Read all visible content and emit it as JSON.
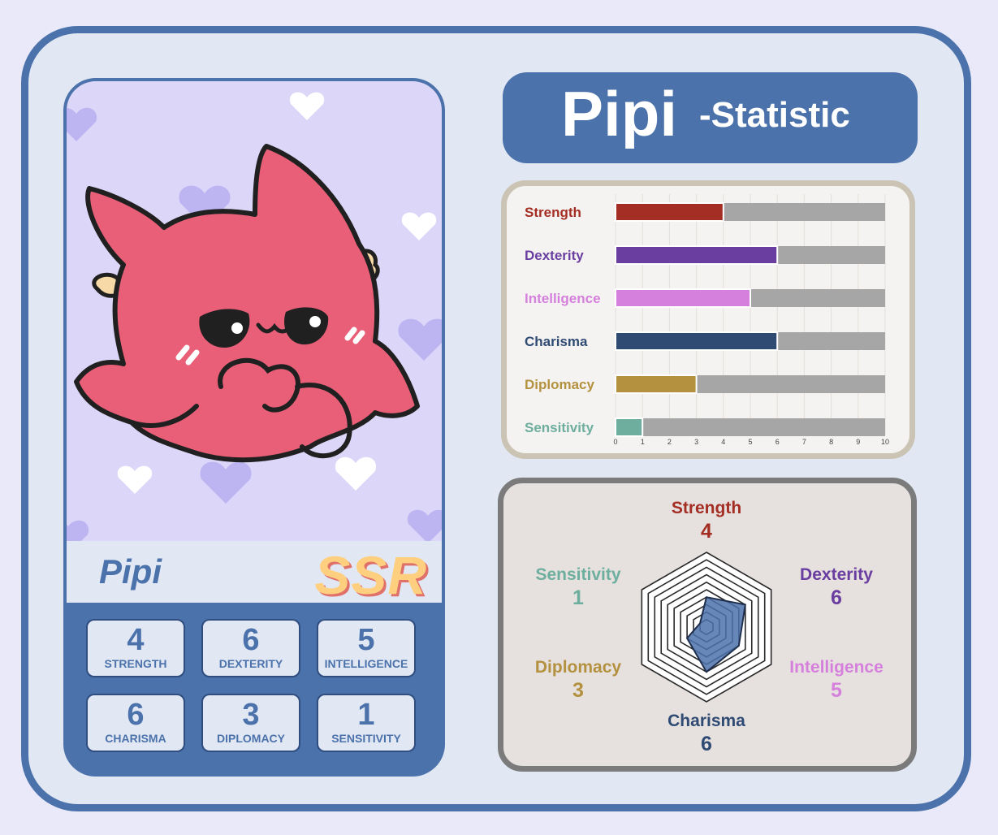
{
  "character": {
    "name": "Pipi",
    "rarity": "SSR"
  },
  "title": {
    "name": "Pipi",
    "suffix": "-Statistic"
  },
  "stats": [
    {
      "value": "4",
      "label": "STRENGTH"
    },
    {
      "value": "6",
      "label": "DEXTERITY"
    },
    {
      "value": "5",
      "label": "INTELLIGENCE"
    },
    {
      "value": "6",
      "label": "CHARISMA"
    },
    {
      "value": "3",
      "label": "DIPLOMACY"
    },
    {
      "value": "1",
      "label": "SENSITIVITY"
    }
  ],
  "chart_data": [
    {
      "type": "bar",
      "orientation": "horizontal",
      "categories": [
        "Strength",
        "Dexterity",
        "Intelligence",
        "Charisma",
        "Diplomacy",
        "Sensitivity"
      ],
      "values": [
        4,
        6,
        5,
        6,
        3,
        1
      ],
      "max": 10,
      "xlim": [
        0,
        10
      ],
      "xticks": [
        "0",
        "1",
        "2",
        "3",
        "4",
        "5",
        "6",
        "7",
        "8",
        "9",
        "10"
      ],
      "colors": [
        "#a42e23",
        "#6a3ea1",
        "#d580dc",
        "#2f4a73",
        "#b3913f",
        "#6dae9e"
      ],
      "remainder_color": "#a6a6a6",
      "grid": true
    },
    {
      "type": "radar",
      "axes": [
        "Strength",
        "Dexterity",
        "Intelligence",
        "Charisma",
        "Diplomacy",
        "Sensitivity"
      ],
      "values": [
        "4",
        "6",
        "5",
        "6",
        "3",
        "1"
      ],
      "max": 10,
      "rings": 10,
      "colors": [
        "#a42e23",
        "#6a3ea1",
        "#d580dc",
        "#2f4a73",
        "#b3913f",
        "#6dae9e"
      ],
      "fill_color": "#4c72ab"
    }
  ],
  "colors": {
    "frame": "#4c72ab",
    "background": "#e1e8f4",
    "card_art": "#dcd6f8",
    "creature": "#e95f78",
    "rarity": "#ffcf80"
  },
  "icons": [
    "heart-icon",
    "creature-illustration"
  ]
}
